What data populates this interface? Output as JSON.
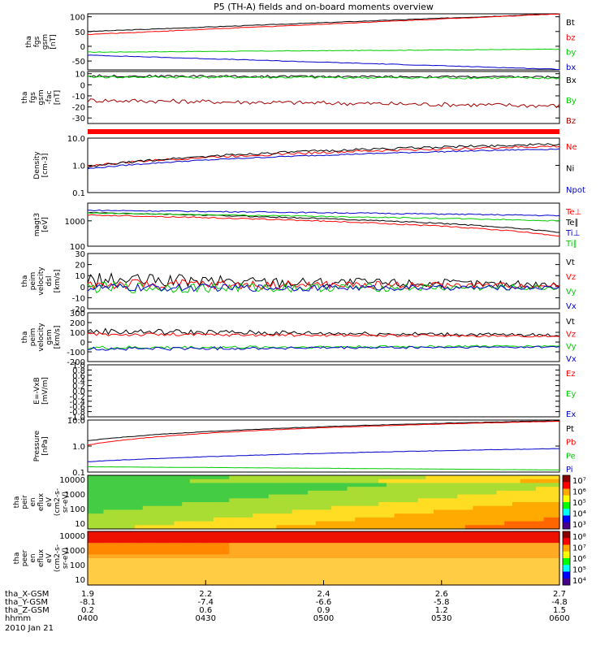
{
  "colors": {
    "black": "#000000",
    "red": "#ff0000",
    "darkred": "#a00000",
    "green": "#00cc00",
    "blue": "#0000cc"
  },
  "chart_data": {
    "type": "line",
    "title": "P5 (TH-A) fields and on-board moments overview",
    "panels": [
      {
        "id": "fgs-gsm",
        "ylabel": [
          "tha",
          "fgs",
          "gsm",
          "[nT]"
        ],
        "ylim": [
          -80,
          110
        ],
        "ticks": [
          "100",
          "50",
          "0",
          "-50"
        ],
        "log": false,
        "series": [
          {
            "name": "Bt",
            "color": "black",
            "from": 50,
            "to": 110,
            "noise": 1
          },
          {
            "name": "bz",
            "color": "red",
            "from": 40,
            "to": 110,
            "noise": 1
          },
          {
            "name": "by",
            "color": "green",
            "from": -20,
            "to": -10,
            "noise": 1
          },
          {
            "name": "bx",
            "color": "blue",
            "from": -30,
            "to": -78,
            "noise": 1
          }
        ]
      },
      {
        "id": "fgs-fac",
        "ylabel": [
          "tha",
          "fgs",
          "gsm",
          "-fac",
          "[nT]"
        ],
        "ylim": [
          -35,
          12
        ],
        "ticks": [
          "10",
          "0",
          "-10",
          "-20",
          "-30"
        ],
        "log": false,
        "series": [
          {
            "name": "Bx",
            "color": "black",
            "from": 8,
            "to": 7,
            "noise": 1
          },
          {
            "name": "By",
            "color": "green",
            "from": 7,
            "to": 6,
            "noise": 1
          },
          {
            "name": "Bz",
            "color": "darkred",
            "from": -14,
            "to": -19,
            "noise": 2
          }
        ]
      },
      {
        "id": "density",
        "ylabel": [
          "Density",
          "[cm-3]"
        ],
        "ylim": [
          0.1,
          10
        ],
        "ticks": [
          "10.0",
          "1.0",
          "0.1"
        ],
        "log": true,
        "series": [
          {
            "name": "Ne",
            "color": "red",
            "from": 0.95,
            "to": 5,
            "noise": 0.1
          },
          {
            "name": "Ni",
            "color": "black",
            "from": 0.85,
            "to": 6,
            "noise": 0.1
          },
          {
            "name": "Npot",
            "color": "blue",
            "from": 0.75,
            "to": 4,
            "noise": 0.05
          }
        ]
      },
      {
        "id": "mag-temp",
        "ylabel": [
          "magt3",
          "[eV]"
        ],
        "ylim": [
          100,
          5000
        ],
        "ticks": [
          "1000",
          "100"
        ],
        "log": true,
        "series": [
          {
            "name": "Te⊥",
            "color": "red",
            "from": 1700,
            "to": 250,
            "noise": 0.05
          },
          {
            "name": "Te∥",
            "color": "black",
            "from": 2100,
            "to": 350,
            "noise": 0.05
          },
          {
            "name": "Ti⊥",
            "color": "blue",
            "from": 2600,
            "to": 1600,
            "noise": 0.05
          },
          {
            "name": "Ti∥",
            "color": "green",
            "from": 2000,
            "to": 1000,
            "noise": 0.05
          }
        ]
      },
      {
        "id": "velocity-dsl",
        "ylabel": [
          "tha",
          "peim",
          "velocity",
          "dsl",
          "[km/s]"
        ],
        "ylim": [
          -20,
          30
        ],
        "ticks": [
          "30",
          "20",
          "10",
          "0",
          "-10",
          "-20"
        ],
        "log": false,
        "series": [
          {
            "name": "Vt",
            "color": "black",
            "from": 6,
            "to": 2,
            "noise": 5
          },
          {
            "name": "Vz",
            "color": "red",
            "from": 2,
            "to": 1,
            "noise": 4
          },
          {
            "name": "Vy",
            "color": "green",
            "from": -1,
            "to": -1,
            "noise": 4
          },
          {
            "name": "Vx",
            "color": "blue",
            "from": -1,
            "to": -1,
            "noise": 3
          }
        ]
      },
      {
        "id": "velocity-gsm",
        "ylabel": [
          "tha",
          "peim",
          "velocity",
          "gsm",
          "[km/s]"
        ],
        "ylim": [
          -200,
          300
        ],
        "ticks": [
          "300",
          "200",
          "100",
          "0",
          "-100",
          "-200"
        ],
        "log": false,
        "series": [
          {
            "name": "Vt",
            "color": "black",
            "from": 110,
            "to": 70,
            "noise": 25
          },
          {
            "name": "Vz",
            "color": "red",
            "from": 80,
            "to": 60,
            "noise": 15
          },
          {
            "name": "Vy",
            "color": "green",
            "from": -60,
            "to": -40,
            "noise": 15
          },
          {
            "name": "Vx",
            "color": "blue",
            "from": -70,
            "to": -50,
            "noise": 15
          }
        ]
      },
      {
        "id": "efield",
        "ylabel": [
          "E=-VxB",
          "[mV/m]"
        ],
        "ylim": [
          -1,
          1
        ],
        "ticks": [
          "1.0",
          "0.8",
          "0.6",
          "0.4",
          "0.2",
          "0.0",
          "-0.2",
          "-0.4",
          "-0.6",
          "-0.8",
          "-1.0"
        ],
        "log": false,
        "series": [
          {
            "name": "Ez",
            "color": "red",
            "from": null,
            "to": null,
            "noise": 0
          },
          {
            "name": "Ey",
            "color": "green",
            "from": null,
            "to": null,
            "noise": 0
          },
          {
            "name": "Ex",
            "color": "blue",
            "from": null,
            "to": null,
            "noise": 0
          }
        ]
      },
      {
        "id": "pressure",
        "ylabel": [
          "Pressure",
          "[nPa]"
        ],
        "ylim": [
          0.1,
          10
        ],
        "ticks": [
          "10.0",
          "1.0",
          "0.1"
        ],
        "log": true,
        "series": [
          {
            "name": "Pt",
            "color": "black",
            "from": 1.6,
            "to": 9.5,
            "noise": 0.02
          },
          {
            "name": "Pb",
            "color": "red",
            "from": 1.1,
            "to": 9.0,
            "noise": 0.02
          },
          {
            "name": "Pe",
            "color": "green",
            "from": 0.16,
            "to": 0.12,
            "noise": 0.01
          },
          {
            "name": "Pi",
            "color": "blue",
            "from": 0.25,
            "to": 0.8,
            "noise": 0.02
          }
        ]
      },
      {
        "id": "ion-spec",
        "type": "heatmap",
        "ylabel": [
          "tha",
          "peir",
          "en",
          "eflux",
          "eV",
          "(cm2-s-",
          "sr-eV)"
        ],
        "yticks": [
          "10000",
          "1000",
          "100",
          "10"
        ],
        "colorbar": [
          "10⁷",
          "10⁶",
          "10⁵",
          "10⁴",
          "10³"
        ]
      },
      {
        "id": "electron-spec",
        "type": "heatmap",
        "ylabel": [
          "tha",
          "peer",
          "en",
          "eflux",
          "eV",
          "(cm2-s-",
          "sr-eV)"
        ],
        "yticks": [
          "10000",
          "1000",
          "100",
          "10"
        ],
        "colorbar": [
          "10⁸",
          "10⁷",
          "10⁶",
          "10⁵",
          "10⁴"
        ]
      }
    ],
    "x_axis": {
      "rows": [
        {
          "label": "tha_X-GSM",
          "values": [
            "1.9",
            "2.2",
            "2.4",
            "2.6",
            "2.7"
          ]
        },
        {
          "label": "tha_Y-GSM",
          "values": [
            "-8.1",
            "-7.4",
            "-6.6",
            "-5.8",
            "-4.8"
          ]
        },
        {
          "label": "tha_Z-GSM",
          "values": [
            "0.2",
            "0.6",
            "0.9",
            "1.2",
            "1.5"
          ]
        },
        {
          "label": "hhmm",
          "values": [
            "0400",
            "0430",
            "0500",
            "0530",
            "0600"
          ]
        }
      ],
      "date": "2010 Jan 21"
    }
  }
}
